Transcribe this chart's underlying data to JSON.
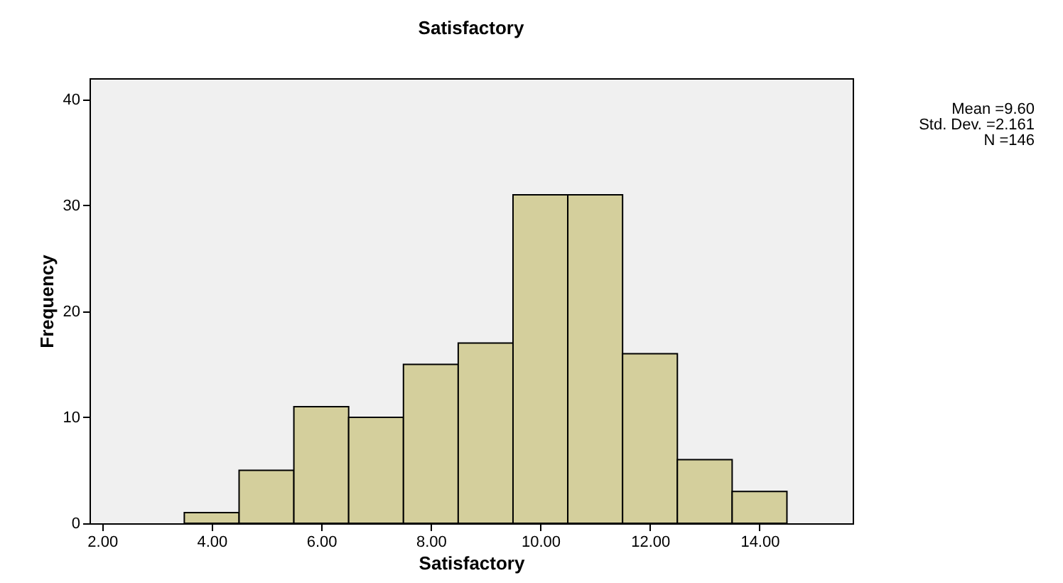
{
  "chart_data": {
    "type": "histogram",
    "title": "Satisfactory",
    "xlabel": "Satisfactory",
    "ylabel": "Frequency",
    "bins": [
      3.5,
      4.5,
      5.5,
      6.5,
      7.5,
      8.5,
      9.5,
      10.5,
      11.5,
      12.5,
      13.5,
      14.5
    ],
    "values": [
      1,
      5,
      11,
      10,
      15,
      17,
      31,
      31,
      16,
      6,
      3
    ],
    "color": "#d4cf9c",
    "xlim": [
      1.77,
      15.7
    ],
    "xticks": [
      {
        "value": 2,
        "label": "2.00"
      },
      {
        "value": 4,
        "label": "4.00"
      },
      {
        "value": 6,
        "label": "6.00"
      },
      {
        "value": 8,
        "label": "8.00"
      },
      {
        "value": 10,
        "label": "10.00"
      },
      {
        "value": 12,
        "label": "12.00"
      },
      {
        "value": 14,
        "label": "14.00"
      }
    ],
    "ylim": [
      0,
      42
    ],
    "yticks": [
      0,
      10,
      20,
      30,
      40
    ],
    "annotations": [
      "Mean =9.60",
      "Std. Dev. =2.161",
      "N =146"
    ]
  }
}
